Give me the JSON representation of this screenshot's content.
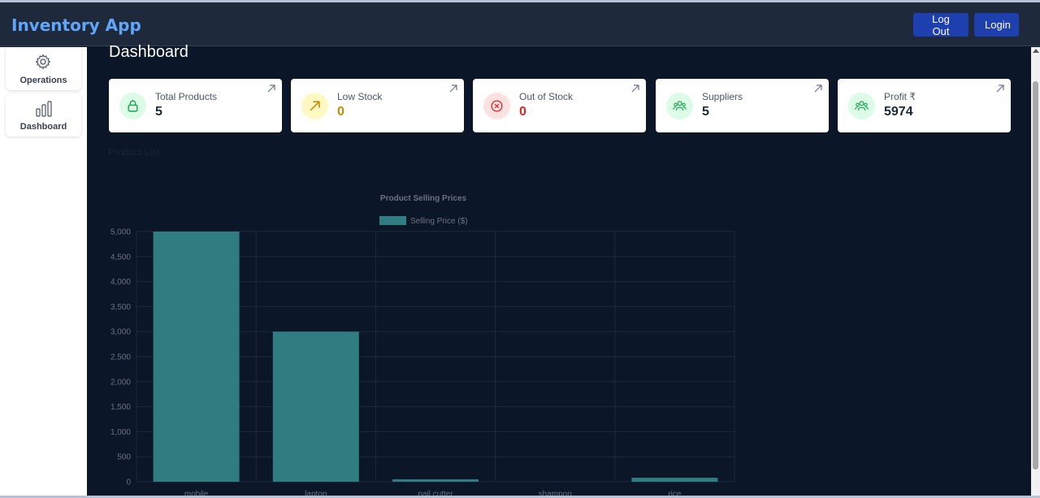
{
  "app": {
    "title": "Inventory App"
  },
  "nav": {
    "logout_label": "Log Out",
    "login_label": "Login"
  },
  "sidebar": {
    "items": [
      {
        "label": "Operations",
        "icon": "gear-icon"
      },
      {
        "label": "Dashboard",
        "icon": "bar-chart-icon"
      }
    ]
  },
  "page": {
    "title": "Dashboard",
    "product_list_label": "Product List"
  },
  "cards": [
    {
      "label": "Total Products",
      "value": "5",
      "icon": "lock-icon",
      "value_color": "#1f2937",
      "circle_color": "#dcfce7",
      "icon_color": "#16a34a"
    },
    {
      "label": "Low Stock",
      "value": "0",
      "icon": "trend-up-icon",
      "value_color": "#ca8a04",
      "circle_color": "#fef9c3",
      "icon_color": "#ca8a04"
    },
    {
      "label": "Out of Stock",
      "value": "0",
      "icon": "x-circle-icon",
      "value_color": "#dc2626",
      "circle_color": "#fee2e2",
      "icon_color": "#dc2626"
    },
    {
      "label": "Suppliers",
      "value": "5",
      "icon": "users-icon",
      "value_color": "#1f2937",
      "circle_color": "#dcfce7",
      "icon_color": "#16a34a"
    },
    {
      "label": "Profit ₹",
      "value": "5974",
      "icon": "users-icon",
      "value_color": "#1f2937",
      "circle_color": "#dcfce7",
      "icon_color": "#16a34a"
    }
  ],
  "chart_data": {
    "type": "bar",
    "title": "Product Selling Prices",
    "legend": "Selling Price ($)",
    "categories": [
      "mobile",
      "laptop",
      "nail cutter",
      "shampoo",
      "rice"
    ],
    "values": [
      5000,
      3000,
      40,
      0,
      80
    ],
    "ylim": [
      0,
      5000
    ],
    "yticks": [
      0,
      500,
      1000,
      1500,
      2000,
      2500,
      3000,
      3500,
      4000,
      4500,
      5000
    ],
    "ytick_labels": [
      "0",
      "500",
      "1,000",
      "1,500",
      "2,000",
      "2,500",
      "3,000",
      "3,500",
      "4,000",
      "4,500",
      "5,000"
    ],
    "bar_color": "#2f7d80",
    "grid": true
  }
}
